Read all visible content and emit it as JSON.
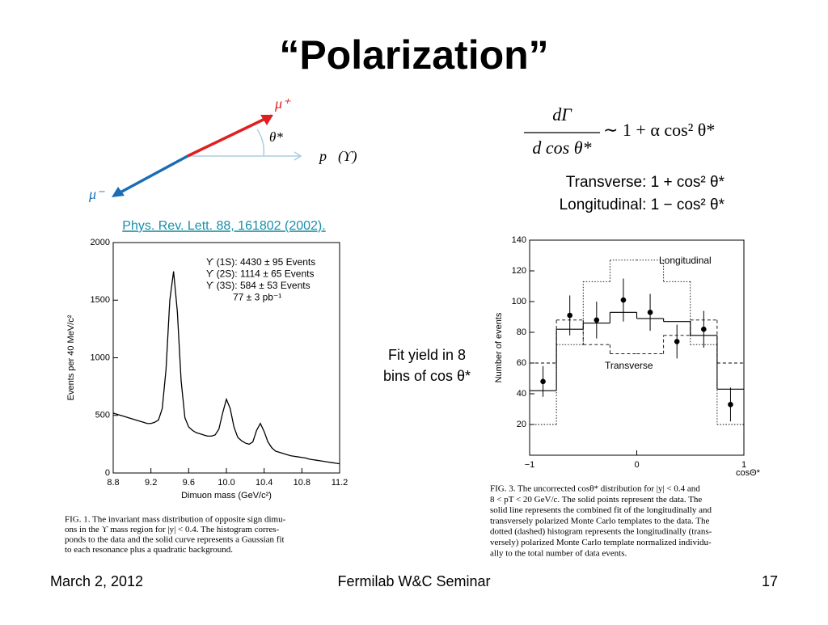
{
  "title": "“Polarization”",
  "diagram": {
    "mu_plus": "μ⁺",
    "theta": "θ*",
    "momentum": "p⃗(ϒ)",
    "mu_minus": "μ⁻"
  },
  "equation": {
    "numerator": "dΓ",
    "denominator": "d cos θ*",
    "rhs": "∼ 1 + α cos² θ*",
    "transverse": "Transverse: 1 + cos² θ*",
    "longitudinal": "Longitudinal: 1 − cos² θ*"
  },
  "reference": "Phys. Rev. Lett. 88, 161802 (2002).",
  "note": [
    "Fit yield in 8",
    "bins of cos θ*"
  ],
  "footer": {
    "date": "March 2, 2012",
    "venue": "Fermilab W&C Seminar",
    "page": "17"
  },
  "chart_data": [
    {
      "type": "line",
      "x_label": "Dimuon mass (GeV/c²)",
      "y_label": "Events per 40 MeV/c²",
      "annotations": [
        "ϒ (1S):  4430 ± 95 Events",
        "ϒ (2S):  1114 ± 65 Events",
        "ϒ (3S):    584 ± 53 Events",
        "77 ± 3 pb⁻¹"
      ],
      "caption": [
        "FIG. 1.   The invariant mass distribution of opposite sign dimu-",
        "ons in the ϒ mass region for |y| < 0.4. The histogram corres-",
        "ponds to the data and the solid curve represents a Gaussian fit",
        "to each resonance plus a quadratic background."
      ],
      "xlim": [
        8.8,
        11.2
      ],
      "ylim": [
        0,
        2000
      ],
      "xticks": [
        8.8,
        9.2,
        9.6,
        {
          "value": 10,
          "label": "10.0"
        },
        10.4,
        10.8,
        11.2
      ],
      "yticks": [
        0,
        500,
        1000,
        1500,
        2000
      ],
      "x": [
        8.8,
        8.84,
        8.88,
        8.92,
        8.96,
        9.0,
        9.04,
        9.08,
        9.12,
        9.16,
        9.2,
        9.24,
        9.28,
        9.32,
        9.36,
        9.4,
        9.44,
        9.48,
        9.52,
        9.56,
        9.6,
        9.64,
        9.68,
        9.72,
        9.76,
        9.8,
        9.84,
        9.88,
        9.92,
        9.96,
        10.0,
        10.04,
        10.08,
        10.12,
        10.16,
        10.2,
        10.24,
        10.28,
        10.32,
        10.36,
        10.4,
        10.44,
        10.48,
        10.52,
        10.56,
        10.6,
        10.64,
        10.68,
        10.72,
        10.76,
        10.8,
        10.84,
        10.88,
        10.92,
        10.96,
        11.0,
        11.04,
        11.08,
        11.12,
        11.16,
        11.2
      ],
      "series": [
        {
          "color": "#000000",
          "values": [
            520,
            510,
            500,
            490,
            480,
            470,
            460,
            450,
            440,
            430,
            430,
            440,
            460,
            560,
            900,
            1500,
            1750,
            1400,
            800,
            480,
            400,
            370,
            350,
            340,
            330,
            320,
            320,
            330,
            380,
            520,
            640,
            560,
            400,
            310,
            280,
            260,
            250,
            270,
            370,
            430,
            360,
            270,
            220,
            190,
            180,
            170,
            160,
            150,
            145,
            140,
            135,
            130,
            120,
            115,
            110,
            105,
            100,
            95,
            90,
            85,
            80
          ]
        }
      ]
    },
    {
      "type": "histogram",
      "x_label": "cosΘ*",
      "y_label": "Number of events",
      "caption": [
        "FIG. 3.   The uncorrected cosθ* distribution for |y| < 0.4 and",
        "8 < pT < 20 GeV/c. The solid points represent the data. The",
        "solid line represents the combined fit of the longitudinally and",
        "transversely polarized Monte Carlo templates to the data. The",
        "dotted (dashed) histogram represents the longitudinally (trans-",
        "versely) polarized Monte Carlo template normalized individu-",
        "ally to the total number of data events."
      ],
      "xlim": [
        -1,
        1
      ],
      "ylim": [
        0,
        140
      ],
      "xticks": [
        {
          "value": -1,
          "label": "−1"
        },
        0,
        1
      ],
      "yticks": [
        20,
        40,
        60,
        80,
        100,
        120,
        140
      ],
      "bins": [
        -1,
        -0.75,
        -0.5,
        -0.25,
        0,
        0.25,
        0.5,
        0.75,
        1
      ],
      "x": [
        -0.875,
        -0.625,
        -0.375,
        -0.125,
        0.125,
        0.375,
        0.625,
        0.875
      ],
      "points": {
        "values": [
          48,
          91,
          88,
          101,
          93,
          74,
          82,
          33
        ],
        "errors": [
          10,
          13,
          12,
          14,
          12,
          11,
          12,
          11
        ]
      },
      "fit": [
        42,
        82,
        86,
        93,
        89,
        87,
        78,
        43
      ],
      "series": [
        {
          "name": "Longitudinal",
          "style": "dotted",
          "values": [
            20,
            72,
            113,
            127,
            127,
            113,
            72,
            20
          ]
        },
        {
          "name": "Transverse",
          "style": "dashed",
          "values": [
            60,
            88,
            72,
            66,
            66,
            78,
            88,
            60
          ]
        }
      ]
    }
  ]
}
